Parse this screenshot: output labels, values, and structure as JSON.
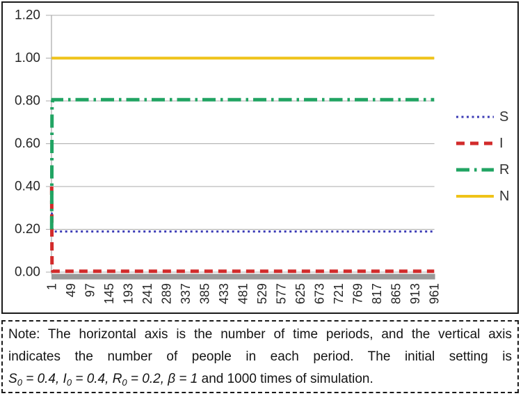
{
  "figure": {
    "note": {
      "line1": "Note: The horizontal axis is the number of time periods, and the vertical axis",
      "line2": "indicates the number of people in each period. The initial setting is",
      "line3_segments": [
        {
          "t": "S",
          "style": "italic"
        },
        {
          "t": "0",
          "style": "sub"
        },
        {
          "t": " = 0.4, ",
          "style": "italic"
        },
        {
          "t": "I",
          "style": "italic"
        },
        {
          "t": "0",
          "style": "sub"
        },
        {
          "t": " = 0.4, ",
          "style": "italic"
        },
        {
          "t": "R",
          "style": "italic"
        },
        {
          "t": "0",
          "style": "sub"
        },
        {
          "t": " = 0.2, ",
          "style": "italic"
        },
        {
          "t": "β = 1",
          "style": "italic"
        },
        {
          "t": " and 1000 times of simulation.",
          "style": "normal"
        }
      ]
    }
  },
  "chart_data": {
    "type": "line",
    "title": "",
    "xlabel": "",
    "ylabel": "",
    "xlim": [
      1,
      1000
    ],
    "ylim": [
      0,
      1.2
    ],
    "grid": "horizontal-only",
    "legend_position": "right-outside",
    "x_tick_labels": [
      "1",
      "49",
      "97",
      "145",
      "193",
      "241",
      "289",
      "337",
      "385",
      "433",
      "481",
      "529",
      "577",
      "625",
      "673",
      "721",
      "769",
      "817",
      "865",
      "913",
      "961"
    ],
    "y_tick_labels": [
      "0.00",
      "0.20",
      "0.40",
      "0.60",
      "0.80",
      "1.00",
      "1.20"
    ],
    "colors": {
      "grid": "#ababab",
      "axis": "#a6a6a6",
      "baseline_bar": "#999999",
      "tick_text": "#262626",
      "legend_text": "#333333"
    },
    "series": [
      {
        "name": "S",
        "style": "dotted",
        "color": "#3b3bb5",
        "width": 3,
        "points": [
          [
            1,
            0.4
          ],
          [
            2,
            0.21
          ],
          [
            4,
            0.19
          ],
          [
            1000,
            0.19
          ]
        ]
      },
      {
        "name": "I",
        "style": "dashed",
        "color": "#d22b2b",
        "width": 5,
        "points": [
          [
            1,
            0.4
          ],
          [
            2,
            0.012
          ],
          [
            4,
            0.004
          ],
          [
            1000,
            0.004
          ]
        ]
      },
      {
        "name": "R",
        "style": "dashdot",
        "color": "#21a463",
        "width": 5,
        "points": [
          [
            1,
            0.2
          ],
          [
            2,
            0.78
          ],
          [
            4,
            0.806
          ],
          [
            1000,
            0.806
          ]
        ]
      },
      {
        "name": "N",
        "style": "solid",
        "color": "#efc319",
        "width": 4,
        "points": [
          [
            1,
            1.0
          ],
          [
            1000,
            1.0
          ]
        ]
      }
    ]
  }
}
